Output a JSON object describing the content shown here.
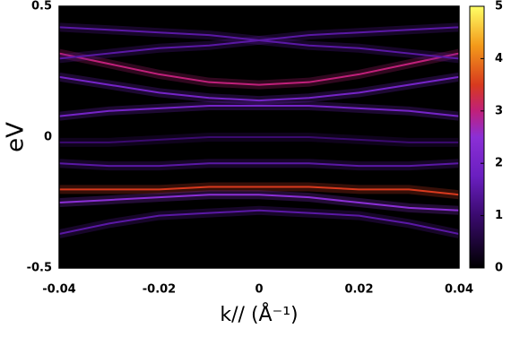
{
  "chart_data": {
    "type": "heatmap",
    "x_label": "k// (Å⁻¹)",
    "y_label": "eV",
    "xlim": [
      -0.04,
      0.04
    ],
    "ylim": [
      -0.5,
      0.5
    ],
    "xticks": [
      -0.04,
      -0.02,
      0,
      0.02,
      0.04
    ],
    "yticks": [
      -0.5,
      0,
      0.5
    ],
    "clim": [
      0,
      5
    ],
    "cticks": [
      0,
      1,
      2,
      3,
      4,
      5
    ],
    "x": [
      -0.04,
      -0.03,
      -0.02,
      -0.01,
      0,
      0.01,
      0.02,
      0.03,
      0.04
    ],
    "bands": [
      {
        "values": [
          0.32,
          0.28,
          0.24,
          0.21,
          0.2,
          0.21,
          0.24,
          0.28,
          0.32
        ],
        "intensity": 3
      },
      {
        "values": [
          0.23,
          0.2,
          0.17,
          0.15,
          0.14,
          0.15,
          0.17,
          0.2,
          0.23
        ],
        "intensity": 2
      },
      {
        "values": [
          0.08,
          0.1,
          0.11,
          0.12,
          0.12,
          0.12,
          0.11,
          0.1,
          0.08
        ],
        "intensity": 2
      },
      {
        "values": [
          0.3,
          0.32,
          0.34,
          0.35,
          0.37,
          0.39,
          0.4,
          0.41,
          0.42
        ],
        "intensity": 1.5
      },
      {
        "values": [
          0.42,
          0.41,
          0.4,
          0.39,
          0.37,
          0.35,
          0.34,
          0.32,
          0.3
        ],
        "intensity": 1.5
      },
      {
        "values": [
          -0.02,
          -0.02,
          -0.01,
          0,
          0,
          0,
          -0.01,
          -0.02,
          -0.02
        ],
        "intensity": 1
      },
      {
        "values": [
          -0.1,
          -0.11,
          -0.11,
          -0.1,
          -0.1,
          -0.1,
          -0.11,
          -0.11,
          -0.1
        ],
        "intensity": 1.5
      },
      {
        "values": [
          -0.2,
          -0.2,
          -0.2,
          -0.19,
          -0.19,
          -0.19,
          -0.2,
          -0.2,
          -0.22
        ],
        "intensity": 3.5
      },
      {
        "values": [
          -0.25,
          -0.24,
          -0.23,
          -0.22,
          -0.22,
          -0.23,
          -0.25,
          -0.27,
          -0.28
        ],
        "intensity": 2.5
      },
      {
        "values": [
          -0.37,
          -0.33,
          -0.3,
          -0.29,
          -0.28,
          -0.29,
          -0.3,
          -0.33,
          -0.37
        ],
        "intensity": 1.5
      }
    ]
  }
}
